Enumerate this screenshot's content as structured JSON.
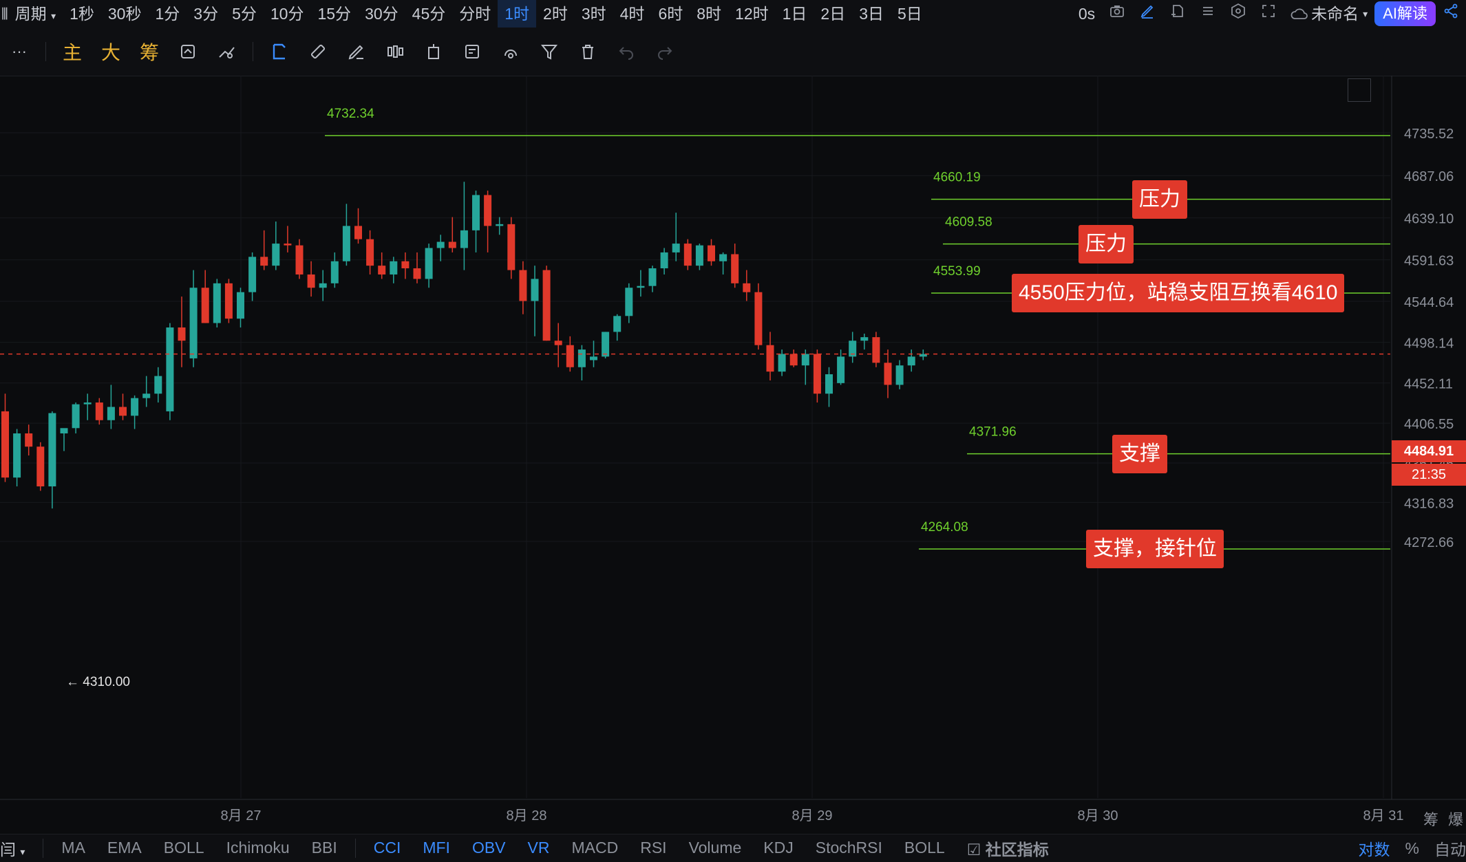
{
  "header": {
    "period_label": "周期",
    "timeframes": [
      "1秒",
      "30秒",
      "1分",
      "3分",
      "5分",
      "10分",
      "15分",
      "30分",
      "45分",
      "分时",
      "1时",
      "2时",
      "3时",
      "4时",
      "6时",
      "8时",
      "12时",
      "1日",
      "2日",
      "3日",
      "5日"
    ],
    "active_timeframe": "1时",
    "timer": "0s",
    "layout_name": "未命名",
    "ai_label": "AI解读"
  },
  "toolbar": {
    "more": "···",
    "main": "主",
    "big": "大",
    "chips": "筹"
  },
  "axis": {
    "price_ticks": [
      "4735.52",
      "4687.06",
      "4639.10",
      "4591.63",
      "4544.64",
      "4498.14",
      "4452.11",
      "4406.55",
      "4361.46",
      "4316.83",
      "4272.66"
    ],
    "date_ticks": [
      "8月 27",
      "8月 28",
      "8月 29",
      "8月 30",
      "8月 31"
    ],
    "current_price": "4484.91",
    "countdown": "21:35",
    "low_marker": "4310.00",
    "corner_right1": "筹",
    "corner_right2": "爆"
  },
  "levels": [
    {
      "value": "4732.34",
      "label": ""
    },
    {
      "value": "4660.19",
      "label": "压力"
    },
    {
      "value": "4609.58",
      "label": "压力"
    },
    {
      "value": "4553.99",
      "label": "4550压力位，站稳支阻互换看4610"
    },
    {
      "value": "4371.96",
      "label": "支撑"
    },
    {
      "value": "4264.08",
      "label": "支撑，接针位"
    }
  ],
  "indicators": {
    "left_cut": "闫",
    "items": [
      "MA",
      "EMA",
      "BOLL",
      "Ichimoku",
      "BBI",
      "CCI",
      "MFI",
      "OBV",
      "VR",
      "MACD",
      "RSI",
      "Volume",
      "KDJ",
      "StochRSI",
      "BOLL"
    ],
    "community": "社区指标",
    "log": "对数",
    "percent": "%",
    "auto": "自动"
  },
  "colors": {
    "up": "#26a69a",
    "down": "#e1392b",
    "level": "#6fd02d",
    "accent": "#3b8cff"
  },
  "chart_data": {
    "type": "candlestick",
    "y_range": [
      4250,
      4750
    ],
    "x_dates": [
      "8月 27",
      "8月 28",
      "8月 29",
      "8月 30",
      "8月 31"
    ],
    "candles": [
      {
        "o": 4420,
        "h": 4440,
        "l": 4340,
        "c": 4345
      },
      {
        "o": 4345,
        "h": 4400,
        "l": 4335,
        "c": 4395
      },
      {
        "o": 4395,
        "h": 4405,
        "l": 4370,
        "c": 4380
      },
      {
        "o": 4380,
        "h": 4385,
        "l": 4330,
        "c": 4335
      },
      {
        "o": 4335,
        "h": 4420,
        "l": 4310,
        "c": 4418
      },
      {
        "o": 4395,
        "h": 4400,
        "l": 4375,
        "c": 4401
      },
      {
        "o": 4401,
        "h": 4430,
        "l": 4395,
        "c": 4428
      },
      {
        "o": 4428,
        "h": 4440,
        "l": 4410,
        "c": 4430
      },
      {
        "o": 4430,
        "h": 4435,
        "l": 4405,
        "c": 4410
      },
      {
        "o": 4410,
        "h": 4450,
        "l": 4400,
        "c": 4425
      },
      {
        "o": 4425,
        "h": 4440,
        "l": 4410,
        "c": 4415
      },
      {
        "o": 4415,
        "h": 4438,
        "l": 4400,
        "c": 4435
      },
      {
        "o": 4435,
        "h": 4460,
        "l": 4425,
        "c": 4440
      },
      {
        "o": 4440,
        "h": 4470,
        "l": 4430,
        "c": 4460
      },
      {
        "o": 4420,
        "h": 4520,
        "l": 4410,
        "c": 4515
      },
      {
        "o": 4515,
        "h": 4550,
        "l": 4470,
        "c": 4500
      },
      {
        "o": 4480,
        "h": 4580,
        "l": 4470,
        "c": 4560
      },
      {
        "o": 4560,
        "h": 4580,
        "l": 4520,
        "c": 4520
      },
      {
        "o": 4520,
        "h": 4570,
        "l": 4515,
        "c": 4565
      },
      {
        "o": 4565,
        "h": 4570,
        "l": 4520,
        "c": 4525
      },
      {
        "o": 4525,
        "h": 4560,
        "l": 4515,
        "c": 4555
      },
      {
        "o": 4555,
        "h": 4600,
        "l": 4545,
        "c": 4595
      },
      {
        "o": 4595,
        "h": 4625,
        "l": 4580,
        "c": 4585
      },
      {
        "o": 4585,
        "h": 4635,
        "l": 4580,
        "c": 4610
      },
      {
        "o": 4610,
        "h": 4630,
        "l": 4600,
        "c": 4608
      },
      {
        "o": 4608,
        "h": 4615,
        "l": 4570,
        "c": 4575
      },
      {
        "o": 4575,
        "h": 4590,
        "l": 4550,
        "c": 4560
      },
      {
        "o": 4560,
        "h": 4580,
        "l": 4545,
        "c": 4565
      },
      {
        "o": 4565,
        "h": 4600,
        "l": 4560,
        "c": 4590
      },
      {
        "o": 4590,
        "h": 4655,
        "l": 4585,
        "c": 4630
      },
      {
        "o": 4630,
        "h": 4650,
        "l": 4610,
        "c": 4615
      },
      {
        "o": 4615,
        "h": 4625,
        "l": 4575,
        "c": 4585
      },
      {
        "o": 4585,
        "h": 4600,
        "l": 4570,
        "c": 4575
      },
      {
        "o": 4575,
        "h": 4595,
        "l": 4565,
        "c": 4590
      },
      {
        "o": 4590,
        "h": 4600,
        "l": 4570,
        "c": 4582
      },
      {
        "o": 4582,
        "h": 4600,
        "l": 4565,
        "c": 4570
      },
      {
        "o": 4570,
        "h": 4610,
        "l": 4560,
        "c": 4605
      },
      {
        "o": 4605,
        "h": 4620,
        "l": 4590,
        "c": 4612
      },
      {
        "o": 4612,
        "h": 4640,
        "l": 4600,
        "c": 4605
      },
      {
        "o": 4605,
        "h": 4680,
        "l": 4580,
        "c": 4625
      },
      {
        "o": 4625,
        "h": 4670,
        "l": 4600,
        "c": 4665
      },
      {
        "o": 4665,
        "h": 4670,
        "l": 4600,
        "c": 4630
      },
      {
        "o": 4630,
        "h": 4640,
        "l": 4620,
        "c": 4632
      },
      {
        "o": 4632,
        "h": 4640,
        "l": 4570,
        "c": 4580
      },
      {
        "o": 4580,
        "h": 4590,
        "l": 4530,
        "c": 4545
      },
      {
        "o": 4545,
        "h": 4585,
        "l": 4505,
        "c": 4570
      },
      {
        "o": 4580,
        "h": 4585,
        "l": 4500,
        "c": 4500
      },
      {
        "o": 4500,
        "h": 4520,
        "l": 4470,
        "c": 4495
      },
      {
        "o": 4495,
        "h": 4505,
        "l": 4465,
        "c": 4470
      },
      {
        "o": 4470,
        "h": 4495,
        "l": 4455,
        "c": 4490
      },
      {
        "o": 4478,
        "h": 4500,
        "l": 4470,
        "c": 4482
      },
      {
        "o": 4482,
        "h": 4510,
        "l": 4480,
        "c": 4510
      },
      {
        "o": 4510,
        "h": 4530,
        "l": 4500,
        "c": 4528
      },
      {
        "o": 4528,
        "h": 4565,
        "l": 4520,
        "c": 4560
      },
      {
        "o": 4560,
        "h": 4580,
        "l": 4550,
        "c": 4562
      },
      {
        "o": 4562,
        "h": 4585,
        "l": 4555,
        "c": 4582
      },
      {
        "o": 4582,
        "h": 4605,
        "l": 4575,
        "c": 4600
      },
      {
        "o": 4600,
        "h": 4645,
        "l": 4590,
        "c": 4610
      },
      {
        "o": 4610,
        "h": 4615,
        "l": 4580,
        "c": 4585
      },
      {
        "o": 4585,
        "h": 4610,
        "l": 4580,
        "c": 4608
      },
      {
        "o": 4608,
        "h": 4615,
        "l": 4585,
        "c": 4590
      },
      {
        "o": 4590,
        "h": 4600,
        "l": 4575,
        "c": 4598
      },
      {
        "o": 4598,
        "h": 4610,
        "l": 4560,
        "c": 4565
      },
      {
        "o": 4565,
        "h": 4580,
        "l": 4545,
        "c": 4555
      },
      {
        "o": 4555,
        "h": 4565,
        "l": 4490,
        "c": 4495
      },
      {
        "o": 4495,
        "h": 4510,
        "l": 4455,
        "c": 4465
      },
      {
        "o": 4465,
        "h": 4490,
        "l": 4460,
        "c": 4485
      },
      {
        "o": 4485,
        "h": 4490,
        "l": 4470,
        "c": 4472
      },
      {
        "o": 4472,
        "h": 4490,
        "l": 4450,
        "c": 4485
      },
      {
        "o": 4485,
        "h": 4490,
        "l": 4430,
        "c": 4440
      },
      {
        "o": 4440,
        "h": 4470,
        "l": 4425,
        "c": 4462
      },
      {
        "o": 4452,
        "h": 4490,
        "l": 4450,
        "c": 4482
      },
      {
        "o": 4482,
        "h": 4510,
        "l": 4475,
        "c": 4500
      },
      {
        "o": 4500,
        "h": 4508,
        "l": 4490,
        "c": 4504
      },
      {
        "o": 4504,
        "h": 4510,
        "l": 4470,
        "c": 4475
      },
      {
        "o": 4475,
        "h": 4490,
        "l": 4435,
        "c": 4450
      },
      {
        "o": 4450,
        "h": 4478,
        "l": 4445,
        "c": 4472
      },
      {
        "o": 4472,
        "h": 4490,
        "l": 4465,
        "c": 4482
      },
      {
        "o": 4482,
        "h": 4490,
        "l": 4478,
        "c": 4484.91
      }
    ]
  }
}
